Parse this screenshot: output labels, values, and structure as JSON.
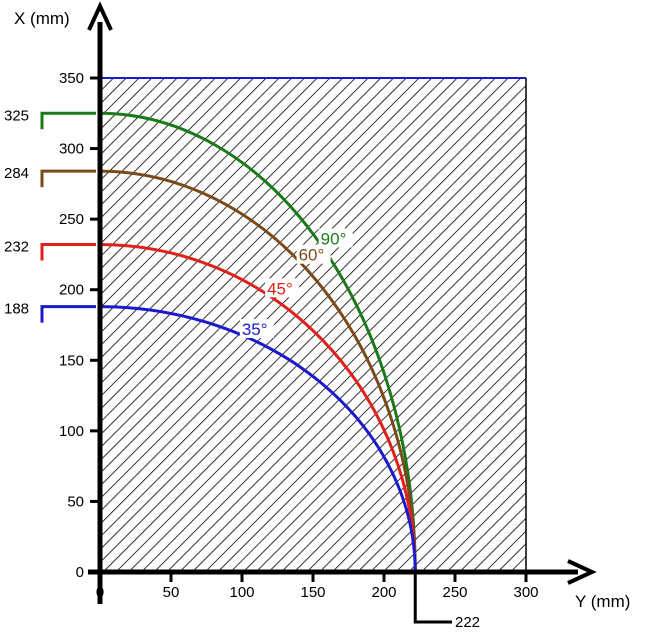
{
  "chart_data": {
    "type": "line",
    "title": "",
    "xlabel": "Y (mm)",
    "ylabel": "X (mm)",
    "xlim": [
      0,
      300
    ],
    "ylim": [
      0,
      350
    ],
    "x_ticks": [
      "0",
      "50",
      "100",
      "150",
      "200",
      "250",
      "300"
    ],
    "y_ticks": [
      "0",
      "50",
      "100",
      "150",
      "200",
      "250",
      "300",
      "350"
    ],
    "hatched_region": {
      "x": [
        0,
        300
      ],
      "y": [
        0,
        350
      ]
    },
    "x_intercept_label": "222",
    "series": [
      {
        "name": "90°",
        "color": "#1a7a1a",
        "y_max": 325,
        "x_max": 222,
        "marker_label": "325"
      },
      {
        "name": "60°",
        "color": "#7a4a1a",
        "y_max": 284,
        "x_max": 222,
        "marker_label": "284"
      },
      {
        "name": "45°",
        "color": "#e0201a",
        "y_max": 232,
        "x_max": 222,
        "marker_label": "232"
      },
      {
        "name": "35°",
        "color": "#1a1acc",
        "y_max": 188,
        "x_max": 222,
        "marker_label": "188"
      }
    ],
    "grid": false,
    "legend": "inline-curve-labels"
  }
}
